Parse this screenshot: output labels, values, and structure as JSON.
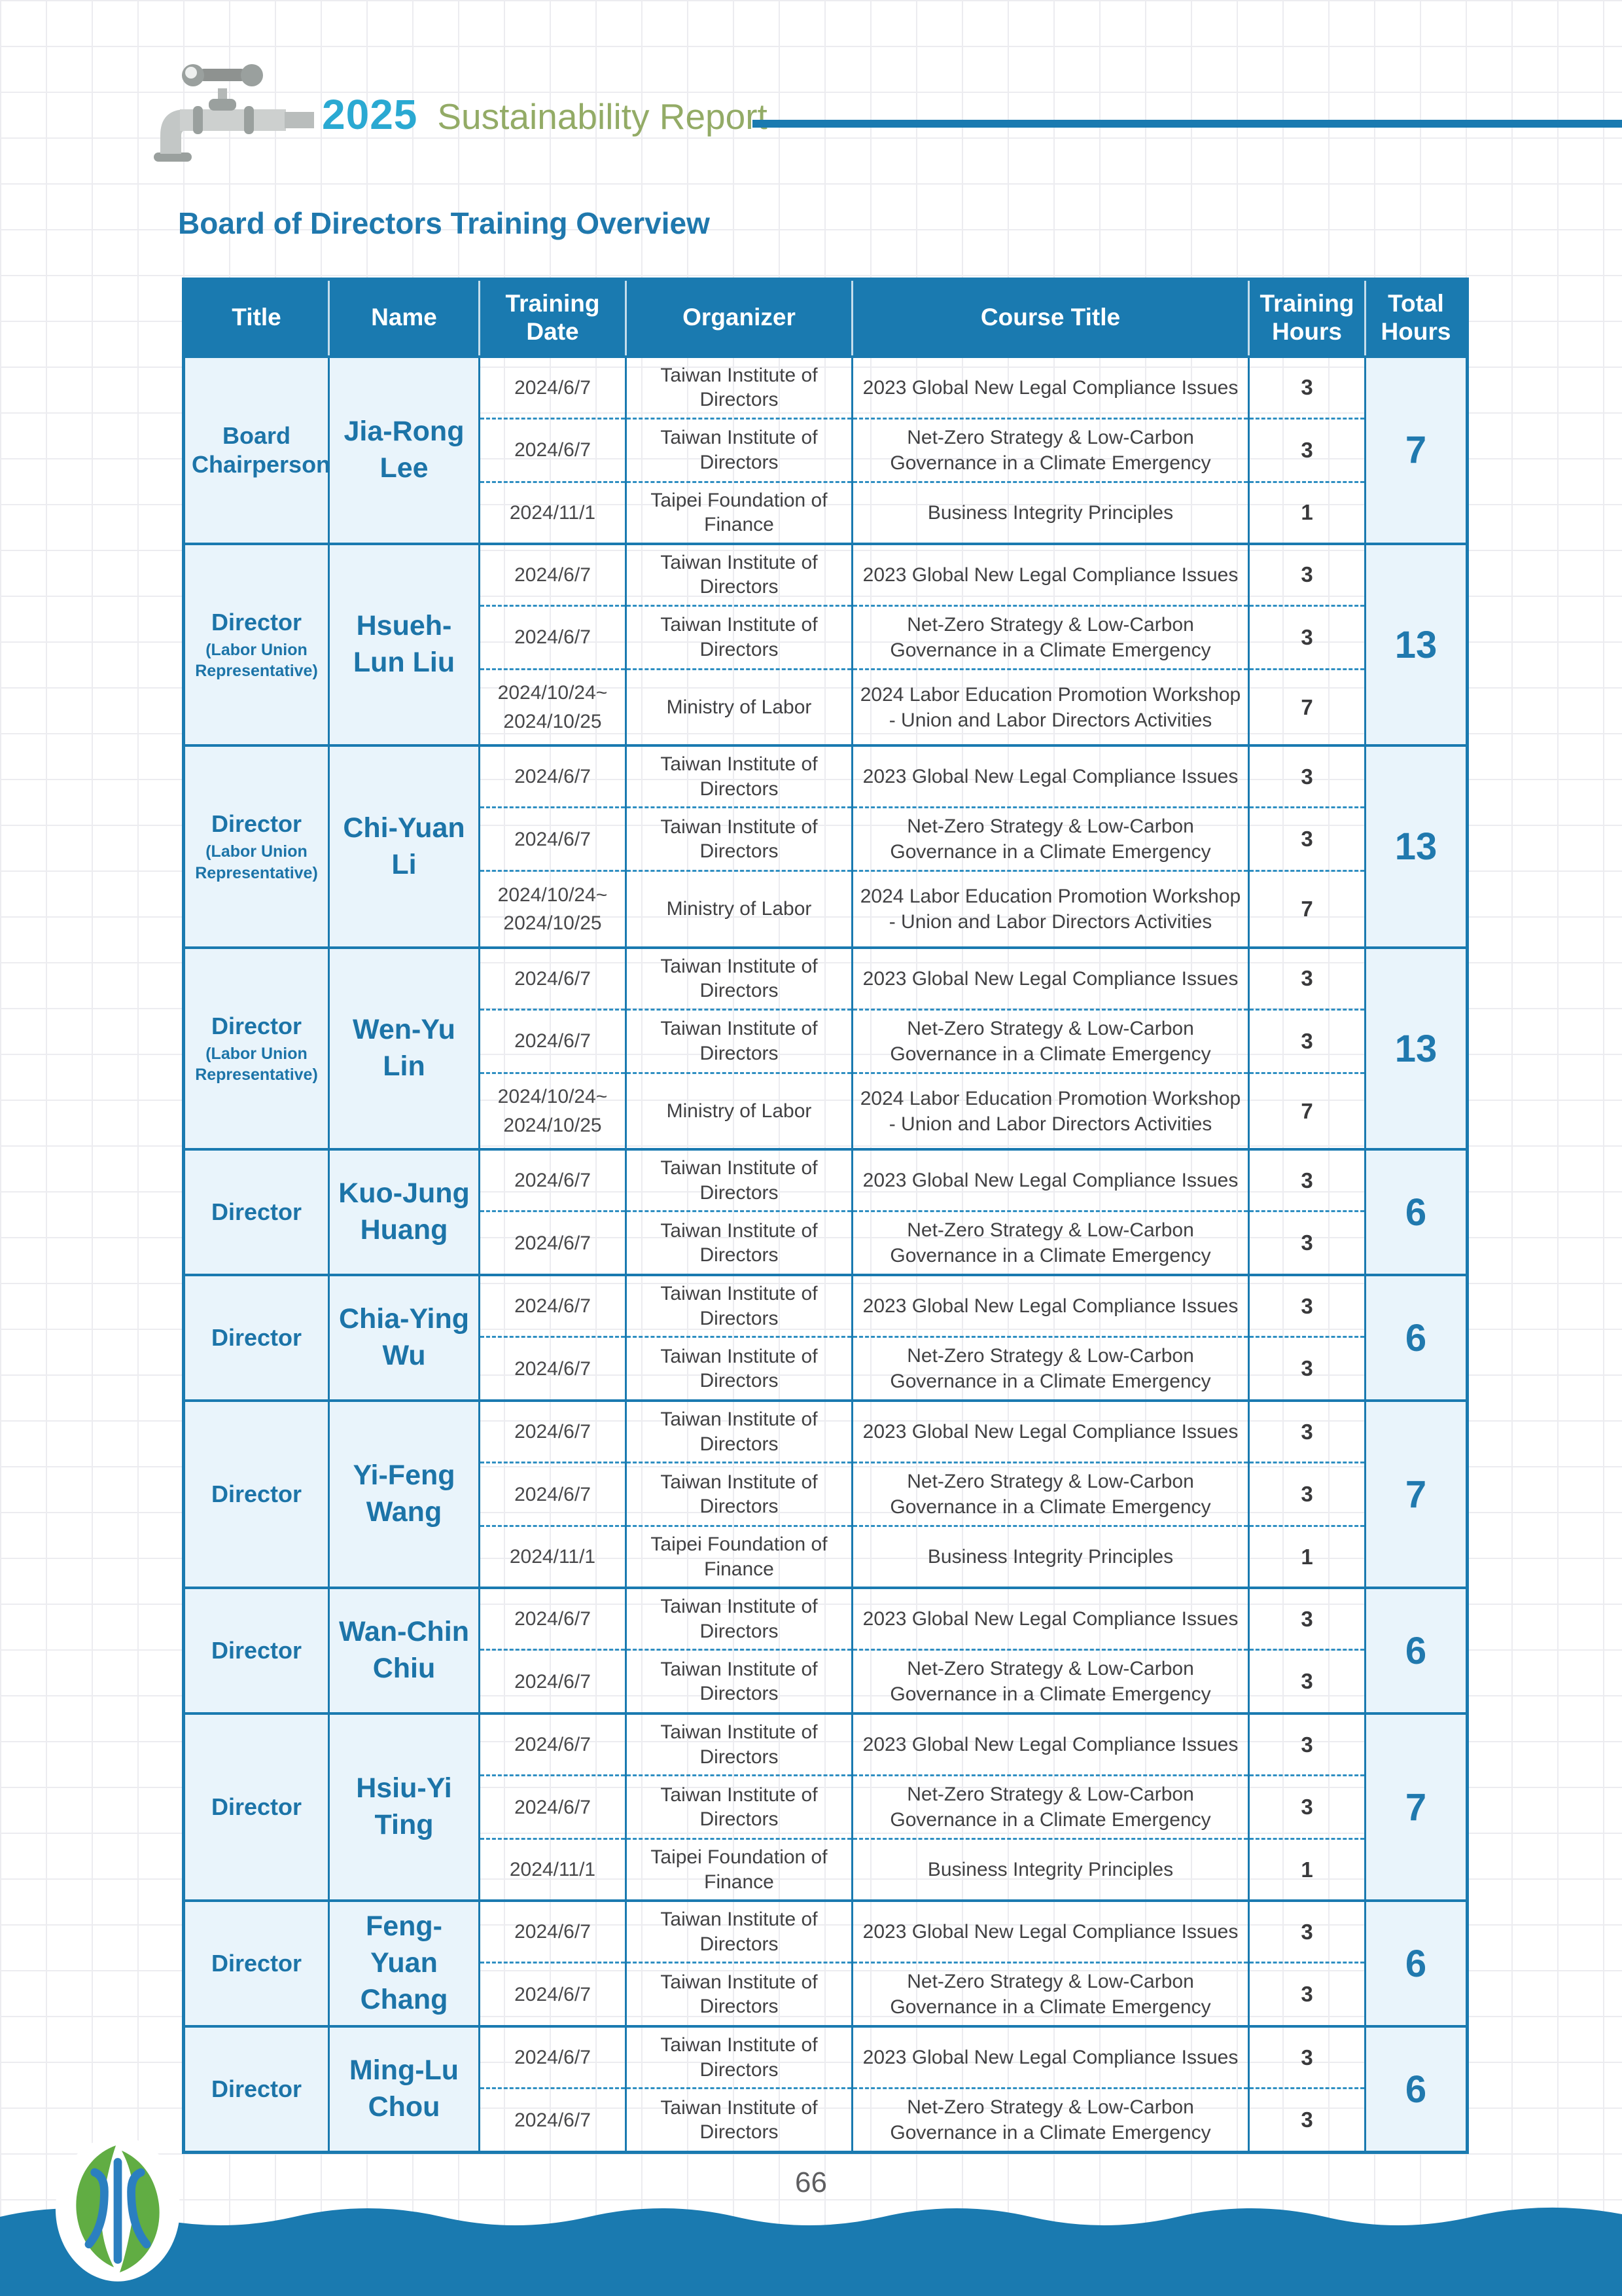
{
  "page": {
    "year": "2025",
    "report_title": "Sustainability Report",
    "section_title": "Board of Directors Training Overview",
    "page_number": "66"
  },
  "colors": {
    "primary_blue": "#1a7ab0",
    "accent_cyan": "#2aa9d2",
    "accent_green": "#93ab66",
    "cell_light_blue": "#e9f4fb",
    "body_text": "#414143",
    "logo_green": "#61ad43",
    "logo_blue": "#2b7fc0"
  },
  "icons": {
    "header_icon": "faucet-icon",
    "footer_logo": "taiwan-water-logo"
  },
  "table": {
    "columns": [
      "Title",
      "Name",
      "Training Date",
      "Organizer",
      "Course Title",
      "Training Hours",
      "Total Hours"
    ],
    "groups": [
      {
        "title": "Board Chairperson",
        "title_note": "",
        "name": "Jia-Rong Lee",
        "total_hours": "7",
        "rows": [
          {
            "date": "2024/6/7",
            "organizer": "Taiwan Institute of Directors",
            "course": "2023 Global New Legal Compliance Issues",
            "hours": "3"
          },
          {
            "date": "2024/6/7",
            "organizer": "Taiwan Institute of Directors",
            "course": "Net-Zero Strategy & Low-Carbon Governance in a Climate Emergency",
            "hours": "3"
          },
          {
            "date": "2024/11/1",
            "organizer": "Taipei Foundation of Finance",
            "course": "Business Integrity Principles",
            "hours": "1"
          }
        ]
      },
      {
        "title": "Director",
        "title_note": "(Labor Union Representative)",
        "name": "Hsueh-Lun Liu",
        "total_hours": "13",
        "rows": [
          {
            "date": "2024/6/7",
            "organizer": "Taiwan Institute of Directors",
            "course": "2023 Global New Legal Compliance Issues",
            "hours": "3"
          },
          {
            "date": "2024/6/7",
            "organizer": "Taiwan Institute of Directors",
            "course": "Net-Zero Strategy & Low-Carbon Governance in a Climate Emergency",
            "hours": "3"
          },
          {
            "date": "2024/10/24~\n2024/10/25",
            "organizer": "Ministry of Labor",
            "course": "2024 Labor Education Promotion Workshop - Union and Labor Directors Activities",
            "hours": "7"
          }
        ]
      },
      {
        "title": "Director",
        "title_note": "(Labor Union Representative)",
        "name": "Chi-Yuan Li",
        "total_hours": "13",
        "rows": [
          {
            "date": "2024/6/7",
            "organizer": "Taiwan Institute of Directors",
            "course": "2023 Global New Legal Compliance Issues",
            "hours": "3"
          },
          {
            "date": "2024/6/7",
            "organizer": "Taiwan Institute of Directors",
            "course": "Net-Zero Strategy & Low-Carbon Governance in a Climate Emergency",
            "hours": "3"
          },
          {
            "date": "2024/10/24~\n2024/10/25",
            "organizer": "Ministry of Labor",
            "course": "2024 Labor Education Promotion Workshop - Union and Labor Directors Activities",
            "hours": "7"
          }
        ]
      },
      {
        "title": "Director",
        "title_note": "(Labor Union Representative)",
        "name": "Wen-Yu Lin",
        "total_hours": "13",
        "rows": [
          {
            "date": "2024/6/7",
            "organizer": "Taiwan Institute of Directors",
            "course": "2023 Global New Legal Compliance Issues",
            "hours": "3"
          },
          {
            "date": "2024/6/7",
            "organizer": "Taiwan Institute of Directors",
            "course": "Net-Zero Strategy & Low-Carbon Governance in a Climate Emergency",
            "hours": "3"
          },
          {
            "date": "2024/10/24~\n2024/10/25",
            "organizer": "Ministry of Labor",
            "course": "2024 Labor Education Promotion Workshop - Union and Labor Directors Activities",
            "hours": "7"
          }
        ]
      },
      {
        "title": "Director",
        "title_note": "",
        "name": "Kuo-Jung Huang",
        "total_hours": "6",
        "rows": [
          {
            "date": "2024/6/7",
            "organizer": "Taiwan Institute of Directors",
            "course": "2023 Global New Legal Compliance Issues",
            "hours": "3"
          },
          {
            "date": "2024/6/7",
            "organizer": "Taiwan Institute of Directors",
            "course": "Net-Zero Strategy & Low-Carbon Governance in a Climate Emergency",
            "hours": "3"
          }
        ]
      },
      {
        "title": "Director",
        "title_note": "",
        "name": "Chia-Ying Wu",
        "total_hours": "6",
        "rows": [
          {
            "date": "2024/6/7",
            "organizer": "Taiwan Institute of Directors",
            "course": "2023 Global New Legal Compliance Issues",
            "hours": "3"
          },
          {
            "date": "2024/6/7",
            "organizer": "Taiwan Institute of Directors",
            "course": "Net-Zero Strategy & Low-Carbon Governance in a Climate Emergency",
            "hours": "3"
          }
        ]
      },
      {
        "title": "Director",
        "title_note": "",
        "name": "Yi-Feng Wang",
        "total_hours": "7",
        "rows": [
          {
            "date": "2024/6/7",
            "organizer": "Taiwan Institute of Directors",
            "course": "2023 Global New Legal Compliance Issues",
            "hours": "3"
          },
          {
            "date": "2024/6/7",
            "organizer": "Taiwan Institute of Directors",
            "course": "Net-Zero Strategy & Low-Carbon Governance in a Climate Emergency",
            "hours": "3"
          },
          {
            "date": "2024/11/1",
            "organizer": "Taipei Foundation of Finance",
            "course": "Business Integrity Principles",
            "hours": "1"
          }
        ]
      },
      {
        "title": "Director",
        "title_note": "",
        "name": "Wan-Chin Chiu",
        "total_hours": "6",
        "rows": [
          {
            "date": "2024/6/7",
            "organizer": "Taiwan Institute of Directors",
            "course": "2023 Global New Legal Compliance Issues",
            "hours": "3"
          },
          {
            "date": "2024/6/7",
            "organizer": "Taiwan Institute of Directors",
            "course": "Net-Zero Strategy & Low-Carbon Governance in a Climate Emergency",
            "hours": "3"
          }
        ]
      },
      {
        "title": "Director",
        "title_note": "",
        "name": "Hsiu-Yi Ting",
        "total_hours": "7",
        "rows": [
          {
            "date": "2024/6/7",
            "organizer": "Taiwan Institute of Directors",
            "course": "2023 Global New Legal Compliance Issues",
            "hours": "3"
          },
          {
            "date": "2024/6/7",
            "organizer": "Taiwan Institute of Directors",
            "course": "Net-Zero Strategy & Low-Carbon Governance in a Climate Emergency",
            "hours": "3"
          },
          {
            "date": "2024/11/1",
            "organizer": "Taipei Foundation of Finance",
            "course": "Business Integrity Principles",
            "hours": "1"
          }
        ]
      },
      {
        "title": "Director",
        "title_note": "",
        "name": "Feng-Yuan Chang",
        "total_hours": "6",
        "rows": [
          {
            "date": "2024/6/7",
            "organizer": "Taiwan Institute of Directors",
            "course": "2023 Global New Legal Compliance Issues",
            "hours": "3"
          },
          {
            "date": "2024/6/7",
            "organizer": "Taiwan Institute of Directors",
            "course": "Net-Zero Strategy & Low-Carbon Governance in a Climate Emergency",
            "hours": "3"
          }
        ]
      },
      {
        "title": "Director",
        "title_note": "",
        "name": "Ming-Lu Chou",
        "total_hours": "6",
        "rows": [
          {
            "date": "2024/6/7",
            "organizer": "Taiwan Institute of Directors",
            "course": "2023 Global New Legal Compliance Issues",
            "hours": "3"
          },
          {
            "date": "2024/6/7",
            "organizer": "Taiwan Institute of Directors",
            "course": "Net-Zero Strategy & Low-Carbon Governance in a Climate Emergency",
            "hours": "3"
          }
        ]
      }
    ]
  }
}
